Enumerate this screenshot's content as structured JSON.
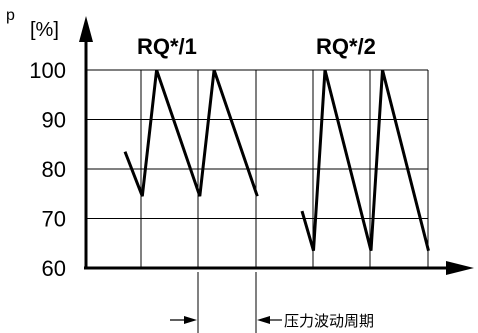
{
  "chart_data": {
    "type": "line",
    "ylabel": "p",
    "yunit": "[%]",
    "yticks": [
      60,
      70,
      80,
      90,
      100
    ],
    "ylim": [
      60,
      100
    ],
    "grid": true,
    "series": [
      {
        "name": "RQ*/1",
        "points": [
          {
            "x": 0.0,
            "y": 83.5
          },
          {
            "x": 0.3,
            "y": 74.5
          },
          {
            "x": 0.55,
            "y": 100
          },
          {
            "x": 1.3,
            "y": 74.5
          },
          {
            "x": 1.55,
            "y": 100
          },
          {
            "x": 2.3,
            "y": 74.5
          }
        ]
      },
      {
        "name": "RQ*/2",
        "points": [
          {
            "x": 0.0,
            "y": 71.5
          },
          {
            "x": 0.2,
            "y": 63.5
          },
          {
            "x": 0.4,
            "y": 100
          },
          {
            "x": 1.2,
            "y": 63.5
          },
          {
            "x": 1.4,
            "y": 100
          },
          {
            "x": 2.2,
            "y": 63.5
          }
        ]
      }
    ],
    "annotation": "压力波动周期"
  }
}
